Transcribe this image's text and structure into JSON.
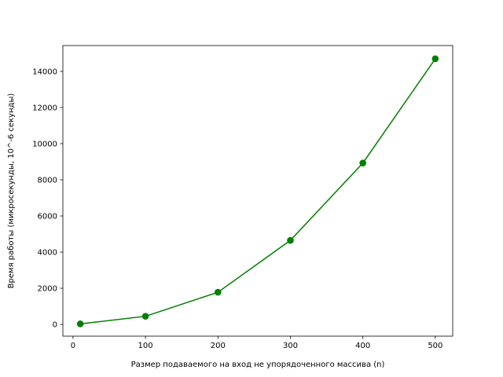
{
  "chart_data": {
    "type": "line",
    "title": "",
    "xlabel": "Размер подаваемого на вход не упорядоченного массива (n)",
    "ylabel": "Время работы (микросекунды, 10^-6 секунды)",
    "x": [
      10,
      100,
      200,
      300,
      400,
      500
    ],
    "series": [
      {
        "name": "",
        "color": "#008000",
        "marker": "circle",
        "values": [
          30,
          450,
          1780,
          4650,
          8930,
          14700
        ]
      }
    ],
    "xlim": [
      -14,
      524
    ],
    "ylim": [
      -650,
      15430
    ],
    "xticks": [
      0,
      100,
      200,
      300,
      400,
      500
    ],
    "xtick_labels": [
      "0",
      "100",
      "200",
      "300",
      "400",
      "500"
    ],
    "yticks": [
      0,
      2000,
      4000,
      6000,
      8000,
      10000,
      12000,
      14000
    ],
    "ytick_labels": [
      "0",
      "2000",
      "4000",
      "6000",
      "8000",
      "10000",
      "12000",
      "14000"
    ],
    "grid": false,
    "legend": "none"
  }
}
